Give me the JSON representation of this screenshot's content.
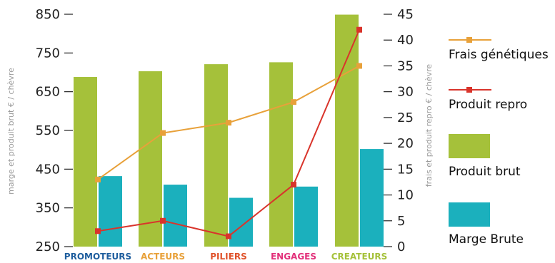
{
  "chart_data": {
    "type": "bar+line",
    "categories": [
      "PROMOTEURS",
      "ACTEURS",
      "PILIERS",
      "ENGAGES",
      "CREATEURS"
    ],
    "category_colors": [
      "#1f5e9e",
      "#e8a13a",
      "#e0522a",
      "#e2307a",
      "#a5c13a"
    ],
    "y_left": {
      "label": "marge et produit brut € / chèvre",
      "range": [
        250,
        850
      ],
      "ticks": [
        "250",
        "350",
        "450",
        "550",
        "650",
        "750",
        "850"
      ]
    },
    "y_right": {
      "label": "frais et produit repro € / chèvre",
      "range": [
        0,
        45
      ],
      "ticks": [
        "0",
        "5",
        "10",
        "15",
        "20",
        "25",
        "30",
        "35",
        "40",
        "45"
      ]
    },
    "series": [
      {
        "name": "Produit brut",
        "type": "bar",
        "axis": "left",
        "color": "#a5c13a",
        "values": [
          688,
          703,
          721,
          726,
          849
        ]
      },
      {
        "name": "Marge Brute",
        "type": "bar",
        "axis": "left",
        "color": "#1bb0bd",
        "values": [
          432,
          410,
          376,
          405,
          502
        ]
      },
      {
        "name": "Frais génétiques",
        "type": "line",
        "axis": "right",
        "color": "#e8a13a",
        "values": [
          13,
          22,
          24,
          28,
          35
        ]
      },
      {
        "name": "Produit repro",
        "type": "line",
        "axis": "right",
        "color": "#d9342b",
        "values": [
          3,
          5,
          2,
          12,
          42
        ]
      }
    ],
    "legend_order": [
      "Frais génétiques",
      "Produit repro",
      "Produit brut",
      "Marge Brute"
    ],
    "legend_position": "right",
    "grid": false
  }
}
